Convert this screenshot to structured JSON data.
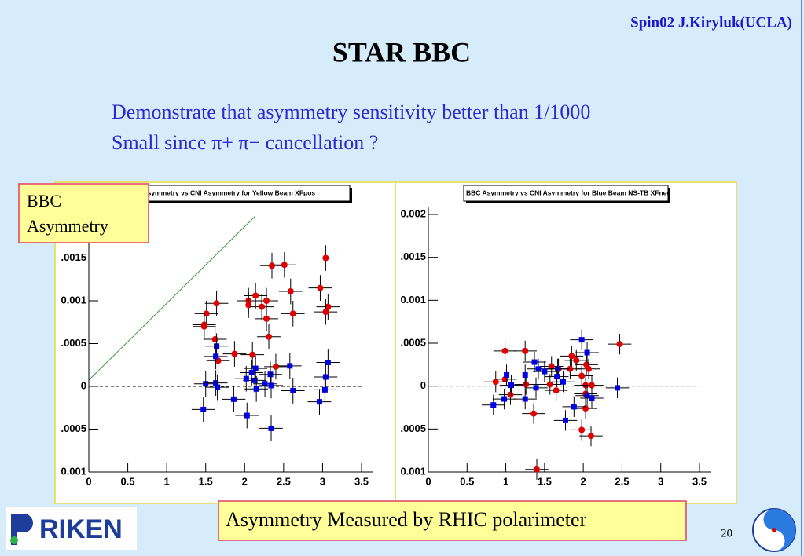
{
  "header": {
    "credit": "Spin02 J.Kiryluk(UCLA)",
    "title": "STAR BBC"
  },
  "bullets": [
    "Demonstrate that asymmetry sensitivity better than 1/1000",
    "Small since π+ π− cancellation ?"
  ],
  "label_box": [
    "BBC",
    "Asymmetry"
  ],
  "caption": "Asymmetry Measured by RHIC polarimeter",
  "page_number": "20",
  "logo": "RIKEN",
  "chart_data": [
    {
      "type": "scatter",
      "title": "BBC Asymmetry vs CNI Asymmetry for Yellow Beam XFpos",
      "xlim": [
        0,
        3.5
      ],
      "ylim": [
        -0.001,
        0.002
      ],
      "xticks": [
        0,
        0.5,
        1,
        1.5,
        2,
        2.5,
        3,
        3.5
      ],
      "yticks": [
        {
          "value": -0.001,
          "label": "0.001"
        },
        {
          "value": -0.0005,
          "label": ".0005"
        },
        0,
        {
          "value": 0.0005,
          "label": ".0005"
        },
        {
          "value": 0.001,
          "label": "0.001"
        },
        {
          "value": 0.0015,
          "label": ".0015"
        }
      ],
      "series": [
        {
          "color": "#e00000",
          "marker": "circle",
          "xerr": 0.15,
          "yerr": 0.00015,
          "x": [
            3.04,
            2.35,
            2.51,
            2.97,
            2.59,
            2.14,
            2.28,
            2.05,
            2.05,
            1.64,
            2.22,
            3.07,
            3.04,
            2.62,
            1.51,
            2.28,
            1.48,
            1.48,
            2.31,
            1.62,
            1.87,
            2.1,
            1.66,
            2.4
          ],
          "values": [
            0.0015,
            0.00141,
            0.00142,
            0.00115,
            0.00111,
            0.00106,
            0.001,
            0.001,
            0.00095,
            0.00097,
            0.00093,
            0.00093,
            0.00087,
            0.00085,
            0.00085,
            0.00079,
            0.00072,
            0.0007,
            0.00058,
            0.00055,
            0.00038,
            0.00037,
            0.0003,
            0.00023
          ]
        },
        {
          "color": "#0000e0",
          "marker": "square",
          "xerr": 0.15,
          "yerr": 0.00015,
          "x": [
            1.64,
            1.63,
            3.07,
            2.58,
            2.14,
            2.09,
            2.33,
            3.04,
            2.13,
            2.02,
            1.5,
            1.63,
            1.65,
            2.26,
            2.34,
            2.15,
            2.62,
            3.03,
            1.86,
            2.96,
            1.47,
            2.03,
            2.34
          ],
          "values": [
            0.00047,
            0.00035,
            0.00028,
            0.00024,
            0.00021,
            0.00016,
            0.00014,
            0.00011,
            7e-05,
            9e-05,
            3e-05,
            4e-05,
            -1e-05,
            3e-05,
            1e-05,
            -3e-05,
            -5e-05,
            -4e-05,
            -0.00015,
            -0.00018,
            -0.00027,
            -0.00034,
            -0.00049
          ]
        }
      ]
    },
    {
      "type": "scatter",
      "title": "BBC Asymmetry vs CNI Asymmetry for Blue Beam NS-TB XFneg",
      "xlim": [
        0,
        3.5
      ],
      "ylim": [
        -0.001,
        0.002
      ],
      "xticks": [
        0,
        0.5,
        1,
        1.5,
        2,
        2.5,
        3,
        3.5
      ],
      "yticks": [
        {
          "value": -0.001,
          "label": "0.001"
        },
        {
          "value": -0.0005,
          "label": ".0005"
        },
        0,
        {
          "value": 0.0005,
          "label": ".0005"
        },
        {
          "value": 0.001,
          "label": "0.001"
        },
        {
          "value": 0.0015,
          "label": ".0015"
        },
        0.002
      ],
      "series": [
        {
          "color": "#e00000",
          "marker": "circle",
          "xerr": 0.15,
          "yerr": 0.00012,
          "x": [
            2.47,
            0.99,
            1.25,
            1.85,
            1.91,
            1.59,
            2.04,
            1.68,
            1.83,
            2.07,
            0.99,
            0.87,
            1.98,
            1.26,
            2.03,
            1.57,
            2.11,
            1.65,
            1.06,
            2.03,
            2.03,
            1.36,
            1.98,
            2.1,
            1.4
          ],
          "values": [
            0.00049,
            0.00041,
            0.00041,
            0.00035,
            0.0003,
            0.00023,
            0.00025,
            0.0002,
            0.0002,
            0.0002,
            8e-05,
            5e-05,
            0.00012,
            2e-05,
            1e-05,
            2e-05,
            1e-05,
            -5e-05,
            -0.0001,
            -9e-05,
            -0.00026,
            -0.00032,
            -0.00051,
            -0.00058,
            -0.00097
          ]
        },
        {
          "color": "#0000e0",
          "marker": "square",
          "xerr": 0.15,
          "yerr": 0.00012,
          "x": [
            1.98,
            2.05,
            1.37,
            1.42,
            1.67,
            1.5,
            1.66,
            1.01,
            1.25,
            1.74,
            1.07,
            1.39,
            2.44,
            2.05,
            2.11,
            0.98,
            1.25,
            0.84,
            1.88,
            1.77
          ],
          "values": [
            0.00054,
            0.00039,
            0.00028,
            0.0002,
            0.0002,
            0.00017,
            0.00011,
            0.00013,
            0.00013,
            5e-05,
            1e-05,
            -2e-05,
            -2e-05,
            -0.00011,
            -0.00014,
            -0.00015,
            -0.00015,
            -0.00022,
            -0.00024,
            -0.0004
          ]
        }
      ]
    }
  ]
}
